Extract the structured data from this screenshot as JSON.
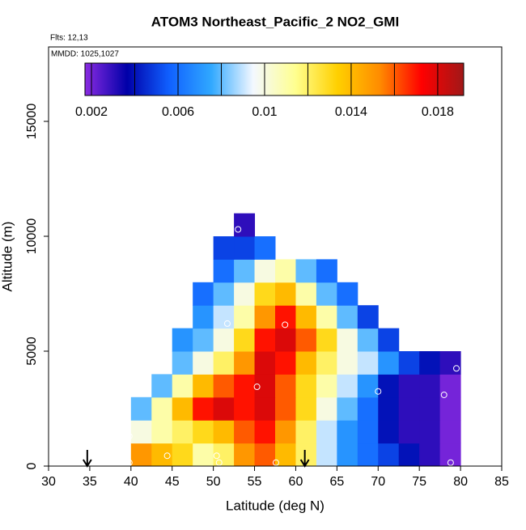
{
  "chart_data": {
    "type": "heatmap",
    "title": "ATOM3 Northeast_Pacific_2 NO2_GMI",
    "flights_label": "Flts: 12,13",
    "dates_label": "MMDD: 1025,1027",
    "x_label": "Latitude (deg N)",
    "y_label": "Altitude (m)",
    "xlim": [
      30,
      85
    ],
    "xticks": [
      30,
      35,
      40,
      45,
      50,
      55,
      60,
      65,
      70,
      75,
      80,
      85
    ],
    "ylim": [
      0,
      18240
    ],
    "yticks": [
      0,
      5000,
      10000,
      15000
    ],
    "x": [
      41.25,
      43.75,
      46.25,
      48.75,
      51.25,
      53.75,
      56.25,
      58.75,
      61.25,
      63.75,
      66.25,
      68.75,
      71.25,
      73.75,
      76.25,
      78.75
    ],
    "y": [
      500,
      1500,
      2500,
      3500,
      4500,
      5500,
      6500,
      7500,
      8500,
      9500,
      10500
    ],
    "z": [
      [
        0.015,
        0.014,
        0.013,
        0.011,
        0.012,
        0.015,
        0.016,
        0.014,
        0.012,
        0.009,
        0.007,
        0.006,
        0.005,
        0.004,
        0.003,
        0.002
      ],
      [
        0.01,
        0.011,
        0.012,
        0.013,
        0.014,
        0.016,
        0.017,
        0.015,
        0.012,
        0.009,
        0.007,
        0.006,
        0.004,
        0.003,
        0.003,
        0.002
      ],
      [
        0.008,
        0.011,
        0.014,
        0.017,
        0.018,
        0.017,
        0.018,
        0.016,
        0.013,
        0.01,
        0.008,
        0.006,
        0.004,
        0.003,
        0.003,
        0.002
      ],
      [
        null,
        0.008,
        0.011,
        0.014,
        0.016,
        0.017,
        0.018,
        0.016,
        0.013,
        0.011,
        0.009,
        0.007,
        0.004,
        0.003,
        0.003,
        0.002
      ],
      [
        null,
        null,
        0.008,
        0.01,
        0.012,
        0.015,
        0.018,
        0.017,
        0.014,
        0.012,
        0.01,
        0.009,
        0.007,
        0.005,
        0.004,
        0.003
      ],
      [
        null,
        null,
        0.007,
        0.008,
        0.01,
        0.013,
        0.017,
        0.018,
        0.016,
        0.013,
        0.01,
        0.008,
        0.005,
        null,
        null,
        null
      ],
      [
        null,
        null,
        null,
        0.007,
        0.009,
        0.011,
        0.015,
        0.017,
        0.014,
        0.011,
        0.008,
        0.005,
        null,
        null,
        null,
        null
      ],
      [
        null,
        null,
        null,
        0.006,
        0.008,
        0.01,
        0.013,
        0.014,
        0.011,
        0.008,
        0.006,
        null,
        null,
        null,
        null,
        null
      ],
      [
        null,
        null,
        null,
        null,
        0.006,
        0.008,
        0.01,
        0.011,
        0.008,
        0.006,
        null,
        null,
        null,
        null,
        null,
        null
      ],
      [
        null,
        null,
        null,
        null,
        0.005,
        0.005,
        0.006,
        null,
        null,
        null,
        null,
        null,
        null,
        null,
        null,
        null
      ],
      [
        null,
        null,
        null,
        null,
        null,
        0.003,
        null,
        null,
        null,
        null,
        null,
        null,
        null,
        null,
        null,
        null
      ]
    ],
    "colorbar": {
      "range": [
        0.0017,
        0.0192
      ],
      "ticks": [
        0.002,
        0.006,
        0.01,
        0.014,
        0.018
      ],
      "colors": [
        "#8a2be2",
        "#0000a8",
        "#1060ff",
        "#30a8ff",
        "#f4f8ff",
        "#ffff90",
        "#ffd000",
        "#ff8c00",
        "#ff0000",
        "#a01818"
      ]
    },
    "points": {
      "x": [
        53,
        51.7,
        58.7,
        55.3,
        70,
        78,
        79.5,
        39.8,
        39.8,
        44.4,
        50.4,
        50.7,
        57.6,
        78.8
      ],
      "y": [
        10300,
        6200,
        6150,
        3450,
        3250,
        3100,
        4250,
        1300,
        150,
        450,
        450,
        150,
        150,
        150
      ]
    },
    "arrows_x": [
      34.7,
      61.1
    ]
  }
}
